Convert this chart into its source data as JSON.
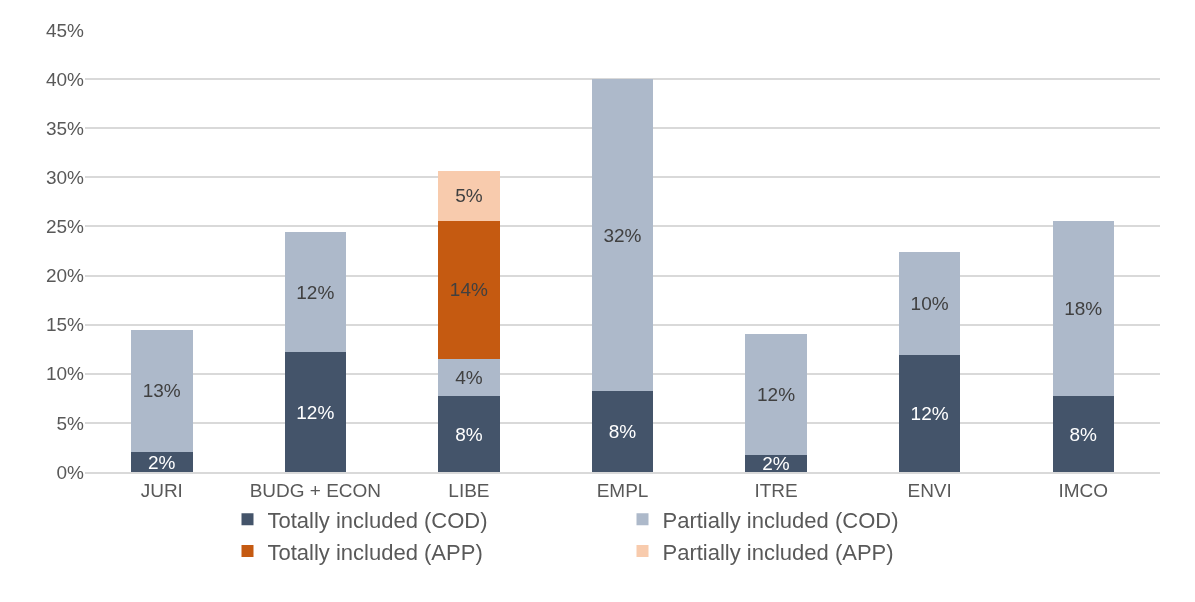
{
  "chart_data": {
    "type": "bar",
    "stacked": true,
    "categories": [
      "JURI",
      "BUDG + ECON",
      "LIBE",
      "EMPL",
      "ITRE",
      "ENVI",
      "IMCO"
    ],
    "series": [
      {
        "name": "Totally included (COD)",
        "color": "#44546a",
        "values": [
          2.0,
          12.2,
          7.7,
          8.2,
          1.7,
          11.9,
          7.7
        ],
        "value_labels": [
          "2%",
          "12%",
          "8%",
          "8%",
          "2%",
          "12%",
          "8%"
        ]
      },
      {
        "name": "Partially included (COD)",
        "color": "#adb9ca",
        "values": [
          12.5,
          12.2,
          3.8,
          31.8,
          12.3,
          10.5,
          17.9
        ],
        "value_labels": [
          "13%",
          "12%",
          "4%",
          "32%",
          "12%",
          "10%",
          "18%"
        ]
      },
      {
        "name": "Totally included (APP)",
        "color": "#c55a11",
        "values": [
          null,
          null,
          14.1,
          null,
          null,
          null,
          null
        ],
        "value_labels": [
          null,
          null,
          "14%",
          null,
          null,
          null,
          null
        ]
      },
      {
        "name": "Partially included (APP)",
        "color": "#f8cbad",
        "values": [
          null,
          null,
          5.0,
          null,
          null,
          null,
          null
        ],
        "value_labels": [
          null,
          null,
          "5%",
          null,
          null,
          null,
          null
        ]
      }
    ],
    "ylim": [
      0,
      45
    ],
    "yticks": [
      {
        "value": 0,
        "label": "0%"
      },
      {
        "value": 5,
        "label": "5%"
      },
      {
        "value": 10,
        "label": "10%"
      },
      {
        "value": 15,
        "label": "15%"
      },
      {
        "value": 20,
        "label": "20%"
      },
      {
        "value": 25,
        "label": "25%"
      },
      {
        "value": 30,
        "label": "30%"
      },
      {
        "value": 35,
        "label": "35%"
      },
      {
        "value": 40,
        "label": "40%"
      },
      {
        "value": 45,
        "label": "45%"
      }
    ],
    "grid": "y",
    "legend": "bottom"
  }
}
